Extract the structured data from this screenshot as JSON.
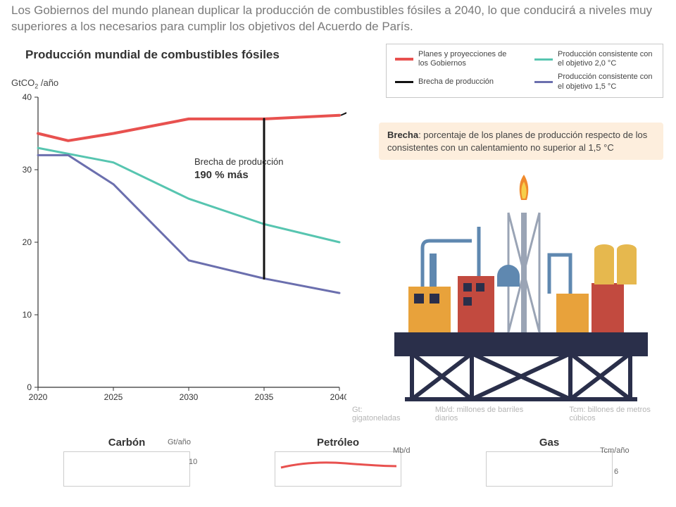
{
  "intro": "Los Gobiernos del mundo planean duplicar la producción de combustibles fósiles a 2040, lo que conducirá a niveles muy superiores a los necesarios para cumplir los objetivos del Acuerdo de París.",
  "chart": {
    "title": "Producción mundial de combustibles fósiles",
    "y_label_html": "GtCO₂ /año",
    "xlim": [
      2020,
      2040
    ],
    "ylim": [
      0,
      40
    ],
    "yticks": [
      0,
      10,
      20,
      30,
      40
    ],
    "xticks": [
      2020,
      2025,
      2030,
      2035,
      2040
    ],
    "background": "#ffffff",
    "axis_color": "#333333",
    "tick_fontsize": 12,
    "series": {
      "plans": {
        "label": "Planes y proyecciones de los Gobiernos",
        "color": "#e8514f",
        "width": 4,
        "x": [
          2020,
          2022,
          2025,
          2030,
          2035,
          2040
        ],
        "y": [
          35,
          34,
          35,
          37,
          37,
          37.5
        ]
      },
      "target20": {
        "label": "Producción consistente con el objetivo 2,0 °C",
        "color": "#57c5b0",
        "width": 3,
        "x": [
          2020,
          2025,
          2030,
          2035,
          2040
        ],
        "y": [
          33,
          31,
          26,
          22.5,
          20
        ]
      },
      "target15": {
        "label": "Producción consistente con el objetivo 1,5 °C",
        "color": "#6b6fae",
        "width": 3,
        "x": [
          2020,
          2022,
          2025,
          2030,
          2035,
          2040
        ],
        "y": [
          32,
          32,
          28,
          17.5,
          15,
          13
        ]
      },
      "gap": {
        "label": "Brecha de producción",
        "color": "#111111",
        "width": 3,
        "x": [
          2035,
          2035
        ],
        "y": [
          37,
          15
        ]
      }
    },
    "gap_annotation": {
      "line1": "Brecha de producción",
      "line2": "190 % más"
    },
    "arrow": {
      "from": [
        2040.5,
        37.5
      ],
      "to_callout": true,
      "color": "#111111"
    }
  },
  "legend_order": [
    "plans",
    "gap",
    "target20",
    "target15"
  ],
  "callout": {
    "bold": "Brecha",
    "rest": ": porcentaje de los planes de producción respecto de los consistentes con un calentamiento no superior al 1,5 °C",
    "bg": "#fdeedd"
  },
  "units": {
    "gt": "Gt: gigatoneladas",
    "mbd": "Mb/d: millones de barriles diarios",
    "tcm": "Tcm: billones de metros cúbicos"
  },
  "subcharts": {
    "coal": {
      "title": "Carbón",
      "unit": "Gt/año",
      "ymax": "10"
    },
    "oil": {
      "title": "Petróleo",
      "unit": "Mb/d"
    },
    "gas": {
      "title": "Gas",
      "unit": "Tcm/año",
      "ymax": "6"
    }
  },
  "refinery_palette": {
    "platform": "#2a2f4a",
    "building_yellow": "#e8a23b",
    "building_red": "#c24a3f",
    "pipe_blue": "#5f88b0",
    "flame_orange": "#f08a2c",
    "flame_yellow": "#f6cf4a",
    "tank_yellow": "#e6b84e",
    "steel": "#9aa4b5"
  }
}
